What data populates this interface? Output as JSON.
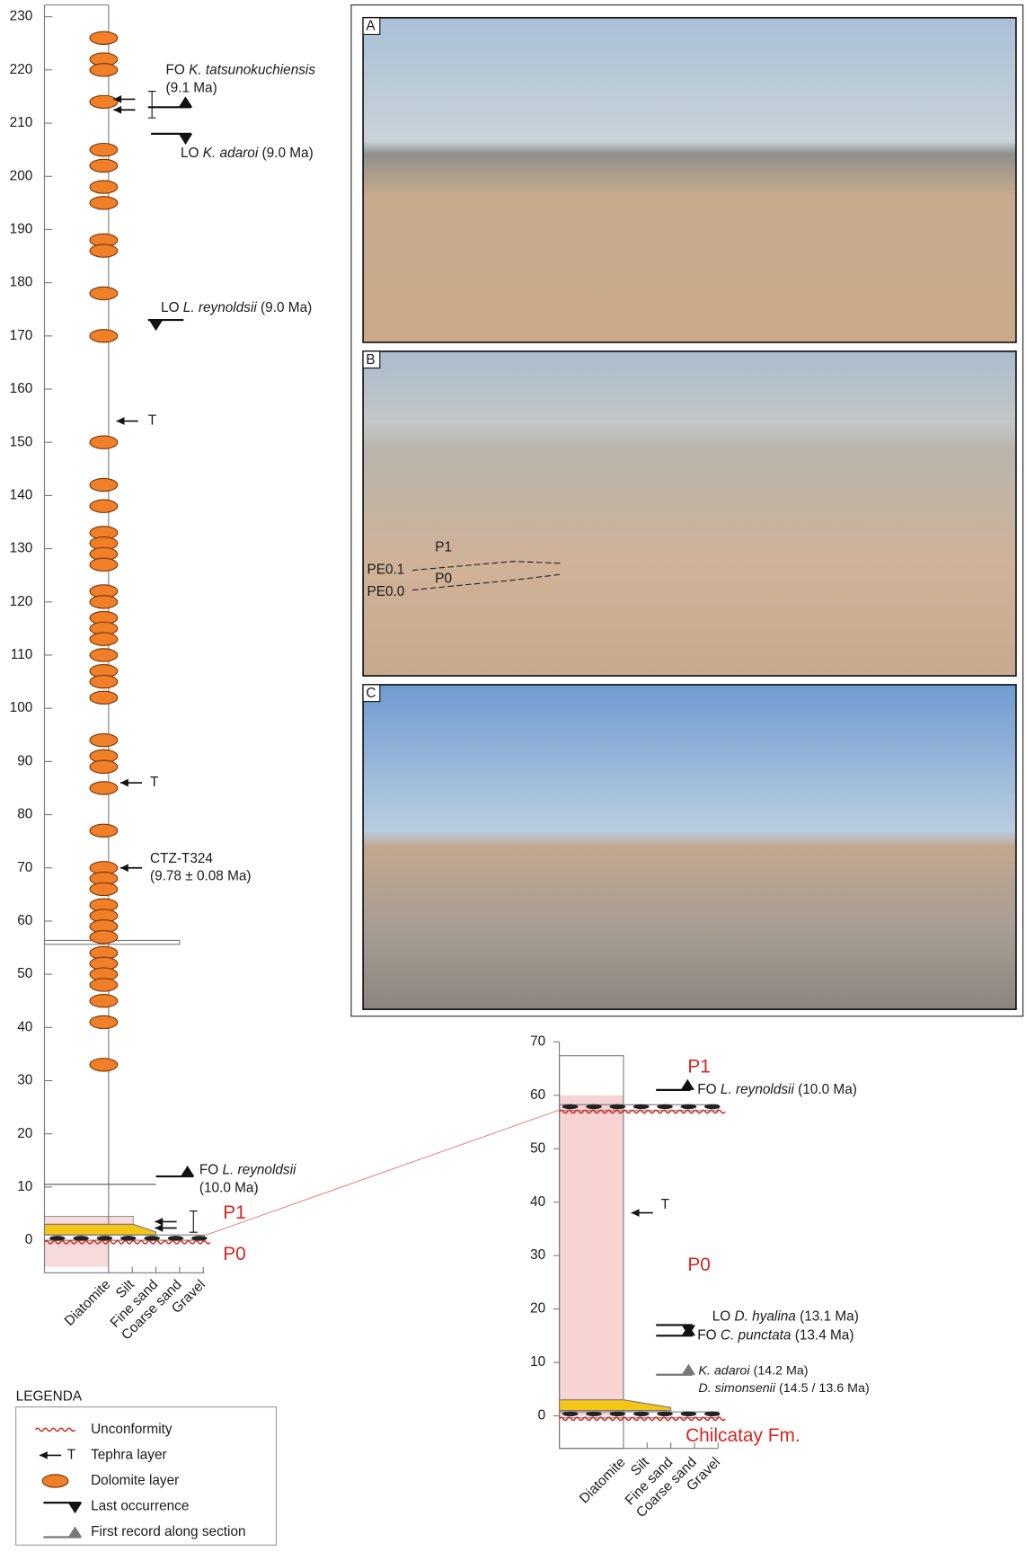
{
  "left_section": {
    "ylim": [
      -5,
      230
    ],
    "yticks": [
      0,
      10,
      20,
      30,
      40,
      50,
      60,
      70,
      80,
      90,
      100,
      110,
      120,
      130,
      140,
      150,
      160,
      170,
      180,
      190,
      200,
      210,
      220,
      230
    ],
    "lithology": [
      "Diatomite",
      "Silt",
      "Fine sand",
      "Coarse sand",
      "Gravel"
    ],
    "dolomite_layers": [
      226,
      222,
      220,
      214,
      205,
      202,
      198,
      195,
      188,
      186,
      178,
      170,
      150,
      142,
      138,
      133,
      131,
      129,
      127,
      122,
      120,
      117,
      115,
      113,
      110,
      107,
      105,
      102,
      94,
      91,
      89,
      85,
      77,
      70,
      68,
      66,
      63,
      61,
      59,
      57,
      54,
      52,
      50,
      48,
      45,
      41,
      33
    ],
    "levels": [
      56,
      10.5
    ],
    "sand_layer": [
      1,
      3
    ],
    "units": [
      "P1",
      "P0"
    ],
    "events": [
      {
        "kind": "FO",
        "at": 213,
        "lines": [
          [
            {
              "t": "FO "
            },
            {
              "t": "K. tatsunokuchiensis",
              "i": true
            }
          ],
          [
            {
              "t": "(9.1 Ma)"
            }
          ]
        ]
      },
      {
        "kind": "LO",
        "at": 208,
        "lines": [
          [
            {
              "t": "LO "
            },
            {
              "t": "K. adaroi",
              "i": true
            },
            {
              "t": " (9.0 Ma)"
            }
          ]
        ]
      },
      {
        "kind": "LO",
        "at": 173,
        "lines": [
          [
            {
              "t": "LO "
            },
            {
              "t": "L. reynoldsii",
              "i": true
            },
            {
              "t": " (9.0 Ma)"
            }
          ]
        ]
      },
      {
        "kind": "FO",
        "at": 12,
        "lines": [
          [
            {
              "t": "FO "
            },
            {
              "t": "L. reynoldsii",
              "i": true
            }
          ],
          [
            {
              "t": "(10.0 Ma)"
            }
          ]
        ]
      }
    ],
    "tephra": [
      {
        "at": 214.5
      },
      {
        "at": 212.5
      },
      {
        "at": 154,
        "lines": [
          [
            {
              "t": "T"
            }
          ]
        ]
      },
      {
        "at": 86,
        "lines": [
          [
            {
              "t": "T"
            }
          ]
        ]
      },
      {
        "at": 70,
        "lines": [
          [
            {
              "t": "CTZ-T324"
            }
          ],
          [
            {
              "t": "(9.78 ± 0.08 Ma)"
            }
          ]
        ]
      },
      {
        "at": 3.5
      },
      {
        "at": 2.3
      }
    ]
  },
  "photos": [
    {
      "label": "A"
    },
    {
      "label": "B",
      "annotations": [
        "P1",
        "PE0.1",
        "P0",
        "PE0.0"
      ]
    },
    {
      "label": "C"
    }
  ],
  "right_section": {
    "ylim": [
      -6,
      70
    ],
    "yticks": [
      0,
      10,
      20,
      30,
      40,
      50,
      60,
      70
    ],
    "lithology": [
      "Diatomite",
      "Silt",
      "Fine sand",
      "Coarse sand",
      "Gravel"
    ],
    "pink_range": [
      0,
      60
    ],
    "sand_layer": [
      1,
      3
    ],
    "unconformities": [
      0,
      57.5
    ],
    "units": [
      "P1",
      "P0",
      "Chilcatay Fm."
    ],
    "events": [
      {
        "kind": "FO",
        "at": 61,
        "lines": [
          [
            {
              "t": "FO "
            },
            {
              "t": "L. reynoldsii",
              "i": true
            },
            {
              "t": " (10.0 Ma)"
            }
          ]
        ]
      },
      {
        "kind": "LO",
        "at": 17,
        "lines": [
          [
            {
              "t": "LO "
            },
            {
              "t": "D. hyalina",
              "i": true
            },
            {
              "t": " (13.1 Ma)"
            }
          ]
        ]
      },
      {
        "kind": "FO",
        "at": 15,
        "lines": [
          [
            {
              "t": "FO "
            },
            {
              "t": "C. punctata",
              "i": true
            },
            {
              "t": " (13.4 Ma)"
            }
          ]
        ]
      },
      {
        "kind": "FR",
        "at": 7.7,
        "lines": [
          [
            {
              "t": "K. adaroi",
              "i": true
            },
            {
              "t": " (14.2 Ma)"
            }
          ],
          [
            {
              "t": "D. simonsenii",
              "i": true
            },
            {
              "t": " (14.5 / 13.6 Ma)"
            }
          ]
        ]
      }
    ],
    "tephra": [
      {
        "at": 38,
        "lines": [
          [
            {
              "t": "T"
            }
          ]
        ]
      }
    ]
  },
  "legend": {
    "title": "LEGENDA",
    "tephra_symbol": "T",
    "items": [
      "Unconformity",
      "Tephra layer",
      "Dolomite layer",
      "Last occurrence",
      "First record along section"
    ]
  }
}
